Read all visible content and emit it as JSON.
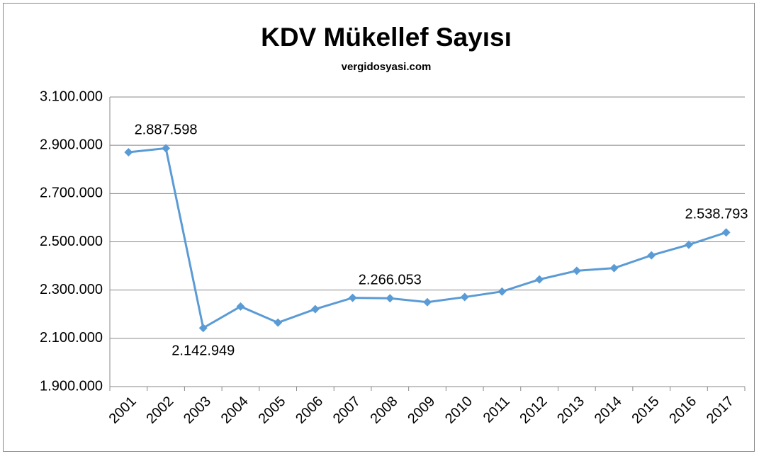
{
  "chart_data": {
    "type": "line",
    "title": "KDV Mükellef Sayısı",
    "subtitle": "vergidosyasi.com",
    "categories": [
      "2001",
      "2002",
      "2003",
      "2004",
      "2005",
      "2006",
      "2007",
      "2008",
      "2009",
      "2010",
      "2011",
      "2012",
      "2013",
      "2014",
      "2015",
      "2016",
      "2017"
    ],
    "series": [
      {
        "name": "KDV Mükellef Sayısı",
        "color": "#5b9bd5",
        "values": [
          2871000,
          2887598,
          2142949,
          2232000,
          2165000,
          2221000,
          2268000,
          2266053,
          2250000,
          2271000,
          2294000,
          2344000,
          2380000,
          2391000,
          2444000,
          2488000,
          2538793
        ],
        "value_labels": [
          null,
          "2.887.598",
          "2.142.949",
          null,
          null,
          null,
          null,
          "2.266.053",
          null,
          null,
          null,
          null,
          null,
          null,
          null,
          null,
          "2.538.793"
        ]
      }
    ],
    "ylim": [
      1900000,
      3100000
    ],
    "yticks": [
      {
        "value": 1900000,
        "label": "1.900.000"
      },
      {
        "value": 2100000,
        "label": "2.100.000"
      },
      {
        "value": 2300000,
        "label": "2.300.000"
      },
      {
        "value": 2500000,
        "label": "2.500.000"
      },
      {
        "value": 2700000,
        "label": "2.700.000"
      },
      {
        "value": 2900000,
        "label": "2.900.000"
      },
      {
        "value": 3100000,
        "label": "3.100.000"
      }
    ],
    "grid": true
  }
}
